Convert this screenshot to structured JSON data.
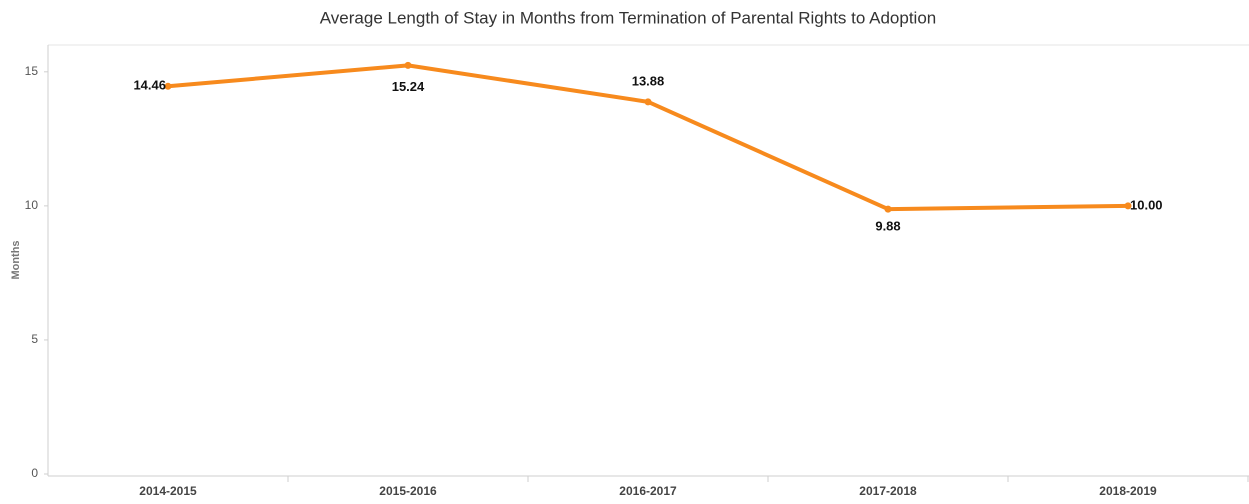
{
  "chart_data": {
    "type": "line",
    "title": "Average Length of Stay in Months from Termination of Parental Rights to Adoption",
    "y_label": "Months",
    "categories": [
      "2014-2015",
      "2015-2016",
      "2016-2017",
      "2017-2018",
      "2018-2019"
    ],
    "series": [
      {
        "name": "Average Length of Stay",
        "color": "#f78a1d",
        "values": [
          14.46,
          15.24,
          13.88,
          9.88,
          10.0
        ],
        "value_labels": [
          "14.46",
          "15.24",
          "13.88",
          "9.88",
          "10.00"
        ]
      }
    ],
    "ylim": [
      0,
      16
    ],
    "yticks": [
      0,
      5,
      10,
      15
    ],
    "grid": false
  }
}
